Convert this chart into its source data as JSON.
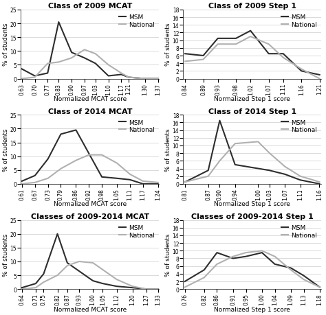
{
  "plots": [
    {
      "title": "Class of 2009 MCAT",
      "xlabel": "Normalized MCAT score",
      "ylabel": "% of students",
      "ylim": [
        0,
        25
      ],
      "yticks": [
        0,
        5,
        10,
        15,
        20,
        25
      ],
      "msm_x": [
        0.63,
        0.7,
        0.77,
        0.83,
        0.9,
        0.97,
        1.03,
        1.1,
        1.17,
        1.21,
        1.3,
        1.37
      ],
      "msm_y": [
        3.5,
        1.0,
        2.0,
        20.5,
        9.5,
        7.5,
        5.5,
        1.0,
        1.5,
        0.5,
        0.0,
        0.0
      ],
      "nat_x": [
        0.63,
        0.7,
        0.77,
        0.83,
        0.9,
        0.97,
        1.03,
        1.1,
        1.17,
        1.21,
        1.3,
        1.37
      ],
      "nat_y": [
        0.0,
        0.5,
        5.5,
        6.0,
        7.5,
        10.5,
        9.0,
        5.0,
        2.0,
        0.5,
        0.0,
        0.0
      ],
      "xtick_labels": [
        "0.63",
        "0.70",
        "0.77",
        "0.83",
        "0.90",
        "0.97",
        "1.03",
        "1.10",
        "1.17",
        "1.21",
        "1.30",
        "1.37"
      ]
    },
    {
      "title": "Class of 2009 Step 1",
      "xlabel": "Normalized Step 1 score",
      "ylabel": "% of students",
      "ylim": [
        0,
        18
      ],
      "yticks": [
        0,
        2,
        4,
        6,
        8,
        10,
        12,
        14,
        16,
        18
      ],
      "msm_x": [
        0.84,
        0.89,
        0.93,
        0.98,
        1.02,
        1.07,
        1.11,
        1.16,
        1.21
      ],
      "msm_y": [
        6.5,
        6.0,
        10.5,
        10.5,
        12.5,
        6.5,
        6.5,
        2.0,
        1.0
      ],
      "nat_x": [
        0.84,
        0.89,
        0.93,
        0.98,
        1.02,
        1.07,
        1.11,
        1.16,
        1.21
      ],
      "nat_y": [
        4.5,
        5.0,
        9.0,
        9.0,
        11.0,
        9.0,
        5.5,
        2.5,
        0.0
      ],
      "xtick_labels": [
        "0.84",
        "0.89",
        "0.93",
        "0.98",
        "1.02",
        "1.07",
        "1.11",
        "1.16",
        "1.21"
      ]
    },
    {
      "title": "Class of 2014 MCAT",
      "xlabel": "Normalized MCAT score",
      "ylabel": "% of students",
      "ylim": [
        0,
        25
      ],
      "yticks": [
        0,
        5,
        10,
        15,
        20,
        25
      ],
      "msm_x": [
        0.61,
        0.67,
        0.73,
        0.79,
        0.86,
        0.92,
        0.98,
        1.05,
        1.11,
        1.17,
        1.24
      ],
      "msm_y": [
        1.0,
        3.0,
        9.0,
        18.0,
        19.5,
        11.0,
        2.5,
        2.0,
        1.5,
        0.0,
        0.0
      ],
      "nat_x": [
        0.61,
        0.67,
        0.73,
        0.79,
        0.86,
        0.92,
        0.98,
        1.05,
        1.11,
        1.17,
        1.24
      ],
      "nat_y": [
        0.0,
        0.5,
        2.0,
        5.5,
        8.5,
        10.5,
        10.5,
        7.5,
        3.5,
        1.0,
        0.5
      ],
      "xtick_labels": [
        "0.61",
        "0.67",
        "0.73",
        "0.79",
        "0.86",
        "0.92",
        "0.98",
        "1.05",
        "1.11",
        "1.17",
        "1.24"
      ]
    },
    {
      "title": "Class of 2014 Step 1",
      "xlabel": "Normalized Step 1 score",
      "ylabel": "% of students",
      "ylim": [
        0,
        18
      ],
      "yticks": [
        0,
        2,
        4,
        6,
        8,
        10,
        12,
        14,
        16,
        18
      ],
      "msm_x": [
        0.81,
        0.87,
        0.9,
        0.94,
        1.0,
        1.03,
        1.07,
        1.11,
        1.16
      ],
      "msm_y": [
        0.5,
        3.5,
        16.5,
        5.0,
        4.0,
        3.5,
        2.5,
        1.0,
        0.0
      ],
      "nat_x": [
        0.81,
        0.87,
        0.9,
        0.94,
        1.0,
        1.03,
        1.07,
        1.11,
        1.16
      ],
      "nat_y": [
        0.5,
        2.0,
        6.0,
        10.5,
        11.0,
        8.0,
        4.5,
        2.0,
        0.5
      ],
      "xtick_labels": [
        "0.81",
        "0.87",
        "0.90",
        "0.94",
        "1.00",
        "1.03",
        "1.07",
        "1.11",
        "1.16"
      ]
    },
    {
      "title": "Classes of 2009-2014 MCAT",
      "xlabel": "Normalized MCAT score",
      "ylabel": "% of students",
      "ylim": [
        0,
        25
      ],
      "yticks": [
        0,
        5,
        10,
        15,
        20,
        25
      ],
      "msm_x": [
        0.64,
        0.71,
        0.75,
        0.82,
        0.87,
        0.93,
        1.0,
        1.05,
        1.12,
        1.2,
        1.27,
        1.33
      ],
      "msm_y": [
        0.5,
        2.0,
        5.5,
        20.0,
        9.5,
        6.5,
        3.0,
        2.0,
        1.0,
        0.5,
        0.0,
        0.0
      ],
      "nat_x": [
        0.64,
        0.71,
        0.75,
        0.82,
        0.87,
        0.93,
        1.0,
        1.05,
        1.12,
        1.2,
        1.27,
        1.33
      ],
      "nat_y": [
        0.0,
        0.5,
        2.5,
        5.0,
        8.5,
        10.0,
        9.5,
        7.0,
        3.5,
        1.0,
        0.0,
        0.0
      ],
      "xtick_labels": [
        "0.64",
        "0.71",
        "0.75",
        "0.82",
        "0.87",
        "0.93",
        "1.00",
        "1.05",
        "1.12",
        "1.20",
        "1.27",
        "1.33"
      ]
    },
    {
      "title": "Classes of 2009-2014 Step 1",
      "xlabel": "Normalized Step 1 score",
      "ylabel": "% of students",
      "ylim": [
        0,
        18
      ],
      "yticks": [
        0,
        2,
        4,
        6,
        8,
        10,
        12,
        14,
        16,
        18
      ],
      "msm_x": [
        0.76,
        0.82,
        0.86,
        0.91,
        0.95,
        1.0,
        1.04,
        1.09,
        1.13,
        1.18
      ],
      "msm_y": [
        2.0,
        5.0,
        9.5,
        8.0,
        8.5,
        9.5,
        6.5,
        5.5,
        3.5,
        0.5
      ],
      "nat_x": [
        0.76,
        0.82,
        0.86,
        0.91,
        0.95,
        1.0,
        1.04,
        1.09,
        1.13,
        1.18
      ],
      "nat_y": [
        0.5,
        3.0,
        6.5,
        8.5,
        9.5,
        10.0,
        8.5,
        5.0,
        2.5,
        0.5
      ],
      "xtick_labels": [
        "0.76",
        "0.82",
        "0.86",
        "0.91",
        "0.95",
        "1.00",
        "1.04",
        "1.09",
        "1.13",
        "1.18"
      ]
    }
  ],
  "msm_color": "#2d2d2d",
  "nat_color": "#b0b0b0",
  "msm_linewidth": 1.5,
  "nat_linewidth": 1.5,
  "title_fontsize": 8,
  "label_fontsize": 6.5,
  "tick_fontsize": 5.5,
  "legend_fontsize": 6.5,
  "background_color": "#ffffff"
}
